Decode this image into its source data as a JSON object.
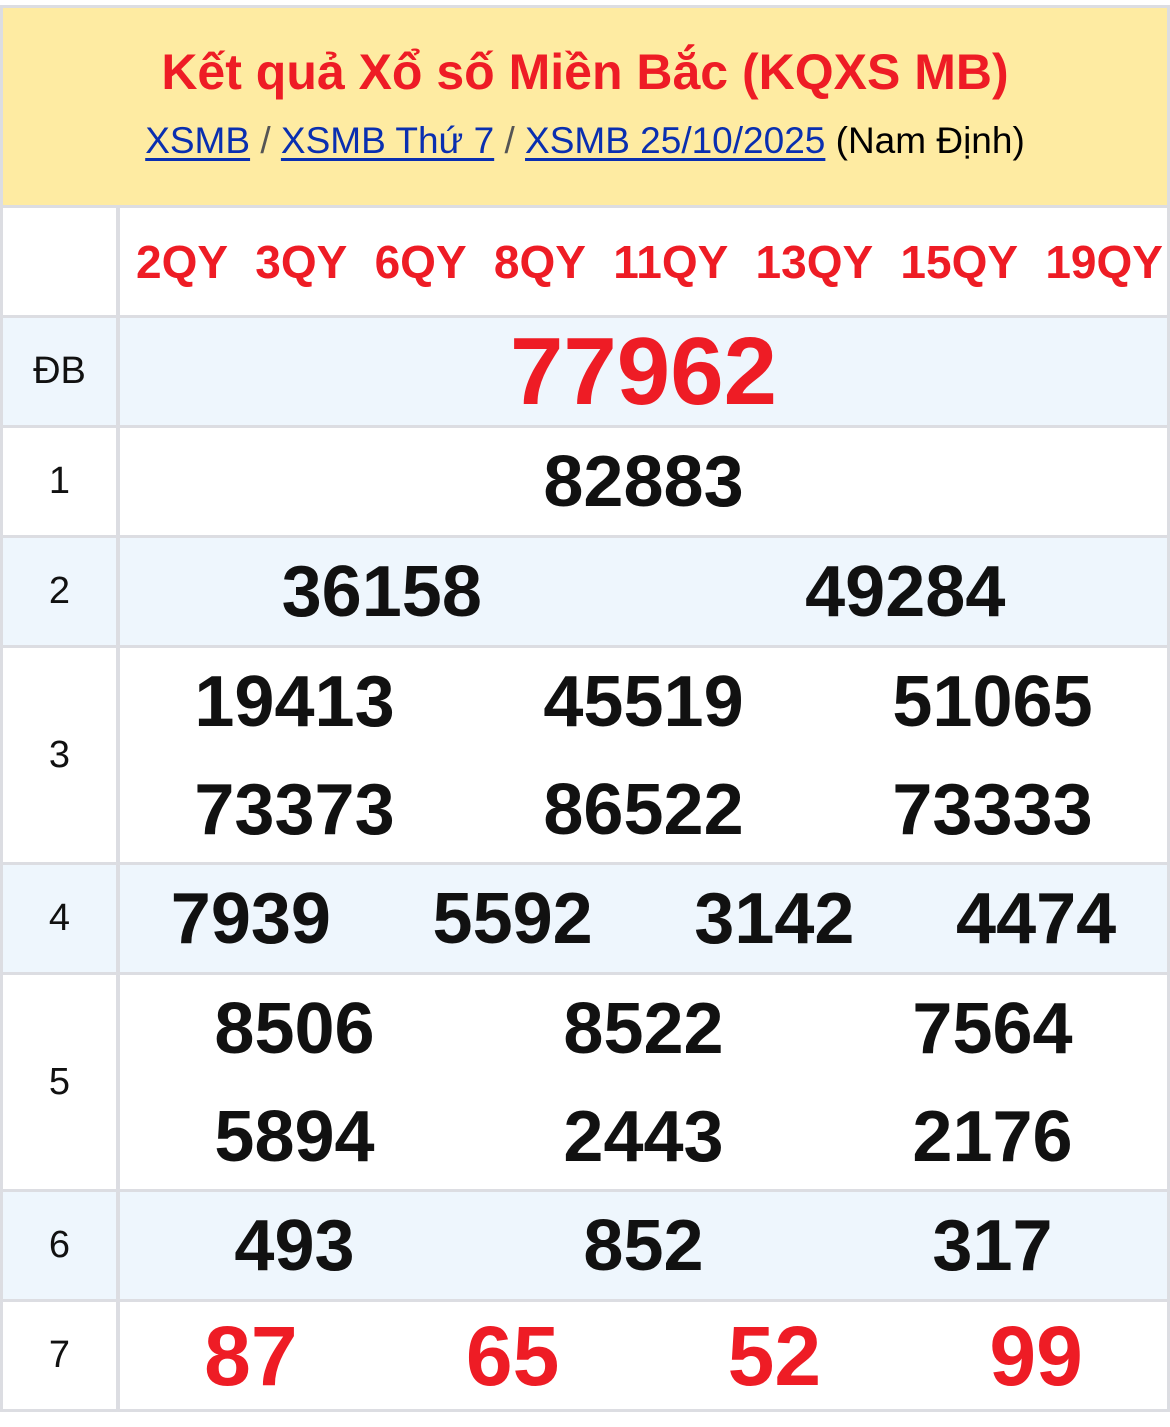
{
  "header": {
    "title": "Kết quả Xổ số Miền Bắc (KQXS MB)",
    "breadcrumb": [
      {
        "label": "XSMB"
      },
      {
        "label": "XSMB Thứ 7"
      },
      {
        "label": "XSMB 25/10/2025"
      }
    ],
    "separator": "/",
    "province": "(Nam Định)"
  },
  "codes": [
    "2QY",
    "3QY",
    "6QY",
    "8QY",
    "11QY",
    "13QY",
    "15QY",
    "19QY"
  ],
  "prizes": [
    {
      "label": "ĐB",
      "numbers": [
        "77962"
      ]
    },
    {
      "label": "1",
      "numbers": [
        "82883"
      ]
    },
    {
      "label": "2",
      "numbers": [
        "36158",
        "49284"
      ]
    },
    {
      "label": "3",
      "numbers": [
        "19413",
        "45519",
        "51065",
        "73373",
        "86522",
        "73333"
      ]
    },
    {
      "label": "4",
      "numbers": [
        "7939",
        "5592",
        "3142",
        "4474"
      ]
    },
    {
      "label": "5",
      "numbers": [
        "8506",
        "8522",
        "7564",
        "5894",
        "2443",
        "2176"
      ]
    },
    {
      "label": "6",
      "numbers": [
        "493",
        "852",
        "317"
      ]
    },
    {
      "label": "7",
      "numbers": [
        "87",
        "65",
        "52",
        "99"
      ]
    }
  ],
  "colors": {
    "accent_red": "#ee1c25",
    "header_bg": "#feeba2",
    "alt_row_bg": "#eef6fd",
    "link": "#0a2fb0"
  }
}
